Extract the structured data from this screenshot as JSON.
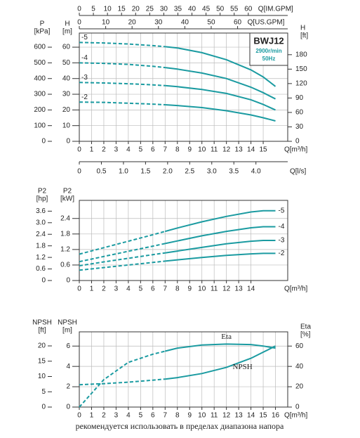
{
  "chart_data": [
    {
      "type": "line",
      "model": "BWJ12",
      "speed": "2900r/min",
      "frequency": "50Hz",
      "x_label": "Q[m³/h]",
      "xlim": [
        0,
        17
      ],
      "xticks": [
        0,
        1,
        2,
        3,
        4,
        5,
        6,
        7,
        8,
        9,
        10,
        11,
        12,
        13,
        14,
        15
      ],
      "y_label": [
        "H",
        "[m]"
      ],
      "ylim": [
        0,
        69
      ],
      "yticks": [
        0,
        10,
        20,
        30,
        40,
        50,
        60
      ],
      "y2_label": [
        "H",
        "[ft]"
      ],
      "y2lim": [
        0,
        225
      ],
      "y2ticks": [
        0,
        30,
        60,
        90,
        120,
        150,
        180
      ],
      "extra_axes": [
        {
          "side": "left",
          "label": [
            "P",
            "[kPa]"
          ],
          "lim": [
            0,
            690
          ],
          "ticks": [
            0,
            100,
            200,
            300,
            400,
            500,
            600
          ]
        },
        {
          "side": "top",
          "label": [
            "Q[US.GPM]"
          ],
          "lim": [
            0,
            79
          ],
          "ticks": [
            0,
            10,
            20,
            30,
            40,
            50,
            60
          ]
        },
        {
          "side": "top",
          "label": [
            "Q[IM.GPM]"
          ],
          "lim": [
            0,
            74
          ],
          "ticks": [
            0,
            5,
            10,
            15,
            20,
            25,
            30,
            35,
            40,
            45,
            50,
            55,
            60
          ]
        },
        {
          "side": "bottom",
          "label": [
            "Q[l/s]"
          ],
          "lim": [
            0,
            4.72
          ],
          "ticks": [
            0,
            0.5,
            {
              "value": 1,
              "label": "1.0"
            },
            1.5,
            {
              "value": 2,
              "label": "2.0"
            },
            2.5,
            {
              "value": 3,
              "label": "3.0"
            },
            3.5,
            {
              "value": 4,
              "label": "4.0"
            }
          ]
        }
      ],
      "grid": true,
      "color": "#1b9ba1",
      "dashed_below": 7,
      "curve_label_side": "left",
      "x": [
        0,
        2,
        4,
        6,
        7,
        8,
        10,
        12,
        14,
        15,
        16
      ],
      "series": [
        {
          "name": "-5",
          "values": [
            63,
            62.7,
            62,
            61,
            60.3,
            59.5,
            56.5,
            52,
            45.5,
            41,
            35
          ]
        },
        {
          "name": "-4",
          "values": [
            50,
            49.7,
            49,
            47.8,
            47,
            46,
            43.5,
            40,
            34.5,
            31,
            27
          ]
        },
        {
          "name": "-3",
          "values": [
            37.5,
            37.2,
            36.7,
            36,
            35.5,
            34.8,
            33,
            30.5,
            26.5,
            23.5,
            20
          ]
        },
        {
          "name": "-2",
          "values": [
            25,
            24.8,
            24.3,
            23.7,
            23.3,
            22.8,
            21.5,
            19.5,
            16.8,
            15,
            13
          ]
        }
      ]
    },
    {
      "type": "line",
      "x_label": "Q[m³/h]",
      "xlim": [
        0,
        17
      ],
      "xticks": [
        0,
        1,
        2,
        3,
        4,
        5,
        6,
        7,
        8,
        9,
        10,
        11,
        12,
        13,
        14
      ],
      "y_label": [
        "P2",
        "[kW]"
      ],
      "ylim": [
        0,
        3.1
      ],
      "yticks": [
        0,
        0.6,
        1.2,
        1.8,
        2.4
      ],
      "extra_axes": [
        {
          "side": "left",
          "label": [
            "P2",
            "[hp]"
          ],
          "lim": [
            0,
            4.16
          ],
          "ticks": [
            0,
            0.6,
            1.2,
            1.8,
            2.4,
            {
              "value": 3,
              "label": "3.0"
            },
            3.6
          ]
        }
      ],
      "grid": true,
      "color": "#1b9ba1",
      "dashed_below": 7,
      "curve_label_side": "right",
      "x": [
        0,
        2,
        4,
        6,
        7,
        8,
        10,
        12,
        14,
        15,
        16
      ],
      "series": [
        {
          "name": "-5",
          "values": [
            1.02,
            1.27,
            1.52,
            1.77,
            1.9,
            2.03,
            2.27,
            2.48,
            2.65,
            2.7,
            2.7
          ]
        },
        {
          "name": "-4",
          "values": [
            0.73,
            0.93,
            1.13,
            1.33,
            1.43,
            1.53,
            1.73,
            1.9,
            2.04,
            2.08,
            2.08
          ]
        },
        {
          "name": "-3",
          "values": [
            0.57,
            0.72,
            0.86,
            1.0,
            1.07,
            1.14,
            1.28,
            1.42,
            1.52,
            1.55,
            1.55
          ]
        },
        {
          "name": "-2",
          "values": [
            0.4,
            0.5,
            0.6,
            0.7,
            0.75,
            0.8,
            0.89,
            0.97,
            1.03,
            1.05,
            1.05
          ]
        }
      ]
    },
    {
      "type": "line",
      "x_label": "Q[m³/h]",
      "xlim": [
        0,
        17
      ],
      "xticks": [
        0,
        1,
        2,
        3,
        4,
        5,
        6,
        7,
        8,
        9,
        10,
        11,
        12,
        13,
        14,
        15,
        16
      ],
      "y_label": [
        "NPSH",
        "[m]"
      ],
      "ylim": [
        0,
        7.4
      ],
      "yticks": [
        0,
        2,
        4,
        6
      ],
      "y2_label": [
        "Eta",
        "[%]"
      ],
      "y2lim": [
        0,
        74
      ],
      "y2ticks": [
        0,
        20,
        40,
        60
      ],
      "extra_axes": [
        {
          "side": "left",
          "label": [
            "NPSH",
            "[ft]"
          ],
          "lim": [
            0,
            24.6
          ],
          "ticks": [
            0,
            5,
            10,
            15,
            20
          ]
        }
      ],
      "grid": true,
      "color": "#1b9ba1",
      "dashed_below": 7,
      "curve_label_side": "inline",
      "x": [
        0,
        2,
        4,
        6,
        7,
        8,
        10,
        12,
        14,
        15,
        16
      ],
      "series": [
        {
          "name": "Eta",
          "axis": "y2",
          "values": [
            0,
            27,
            44,
            52,
            55,
            58,
            61,
            62,
            61.5,
            60,
            58
          ]
        },
        {
          "name": "NPSH",
          "values": [
            2.2,
            2.3,
            2.45,
            2.65,
            2.75,
            2.9,
            3.3,
            3.9,
            4.8,
            5.4,
            6.0
          ]
        }
      ]
    }
  ],
  "footer": "рекомендуется использовать в пределах диапазона напора"
}
